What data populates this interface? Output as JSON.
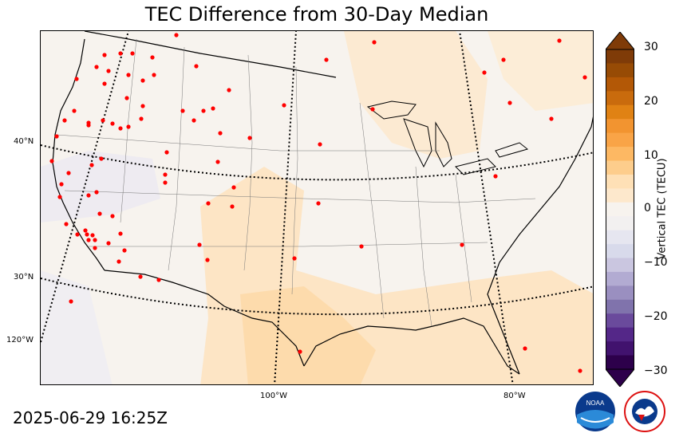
{
  "title": "TEC Difference from 30-Day Median",
  "timestamp": "2025-06-29 16:25Z",
  "lat_labels": [
    "40°N",
    "30°N"
  ],
  "lon_labels": [
    "120°W",
    "100°W",
    "80°W"
  ],
  "colorbar": {
    "label": "Vertical TEC (TECU)",
    "ticks": [
      "30",
      "20",
      "10",
      "0",
      "−10",
      "−20",
      "−30"
    ],
    "min": -30,
    "max": 30,
    "colors": [
      "#2d004b",
      "#41126e",
      "#542788",
      "#6a4a9c",
      "#8073ac",
      "#9a8fc0",
      "#b2abd2",
      "#cac6e0",
      "#d8daeb",
      "#e6e6f0",
      "#f2f0f0",
      "#f7f3ee",
      "#fde8cc",
      "#fee0b6",
      "#fdcd8c",
      "#fdb863",
      "#f9a447",
      "#f29430",
      "#e08214",
      "#c96b0d",
      "#b35806",
      "#974b05",
      "#7f3b08"
    ]
  },
  "logos": {
    "noaa": "NOAA",
    "nws": "NATIONAL WEATHER SERVICE"
  },
  "stations_count_note": "",
  "colors": {
    "land_bg": "#f7f3ee",
    "positive_anom": "#fde8cc",
    "negative_anom": "#eceaf1",
    "station": "#ff0000"
  }
}
